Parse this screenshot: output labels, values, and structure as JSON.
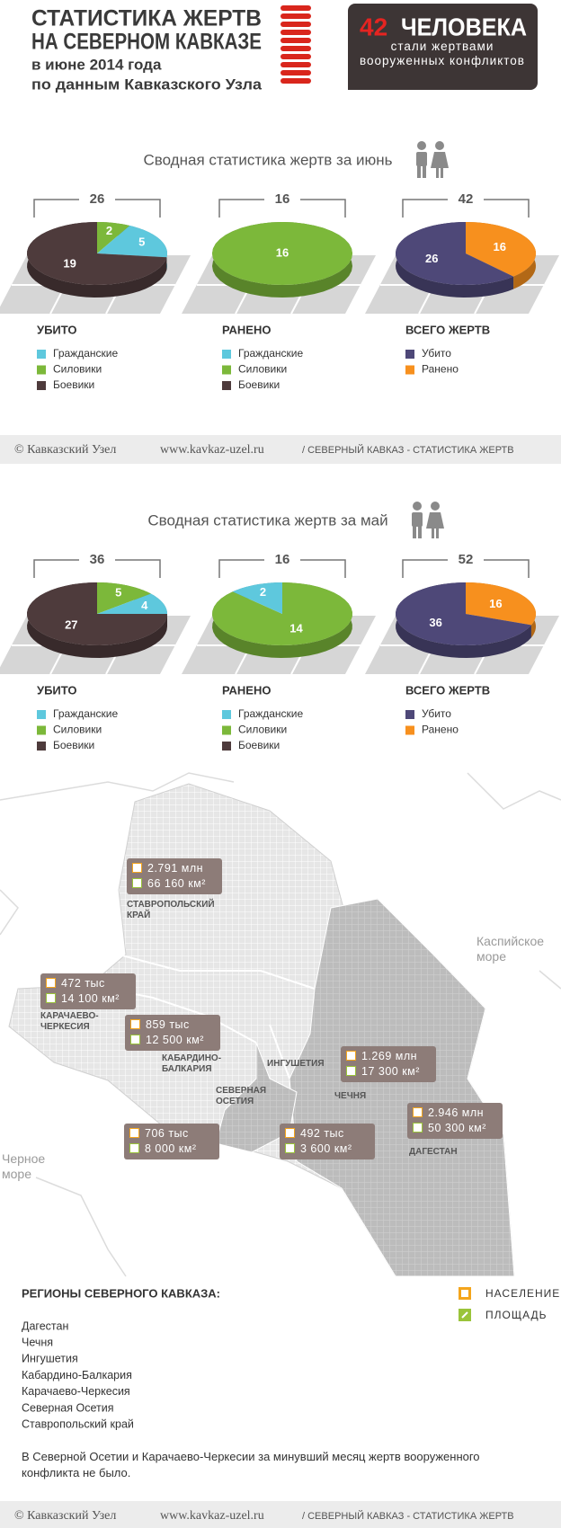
{
  "header": {
    "title_line1": "СТАТИСТИКА ЖЕРТВ",
    "title_line2": "НА СЕВЕРНОМ КАВКАЗЕ",
    "subtitle_line1": "в июне 2014 года",
    "subtitle_line2": "по данным Кавказского Узла",
    "badge_number": 42,
    "badge_word": "ЧЕЛОВЕКА",
    "badge_text": "стали жертвами вооруженных конфликтов"
  },
  "sections": [
    {
      "title": "Сводная статистика жертв за июнь"
    },
    {
      "title": "Сводная статистика жертв за май"
    }
  ],
  "chart_data": [
    {
      "type": "pie",
      "title": "УБИТО",
      "total": 26,
      "categories": [
        "Гражданские",
        "Силовики",
        "Боевики"
      ],
      "values": [
        5,
        2,
        19
      ],
      "colors": [
        "#5ec8dd",
        "#7cb83a",
        "#4e3b3c"
      ]
    },
    {
      "type": "pie",
      "title": "РАНЕНО",
      "total": 16,
      "categories": [
        "Гражданские",
        "Силовики",
        "Боевики"
      ],
      "values": [
        0,
        16,
        0
      ],
      "colors": [
        "#5ec8dd",
        "#7cb83a",
        "#4e3b3c"
      ]
    },
    {
      "type": "pie",
      "title": "ВСЕГО ЖЕРТВ",
      "total": 42,
      "categories": [
        "Убито",
        "Ранено"
      ],
      "values": [
        26,
        16
      ],
      "colors": [
        "#4e4878",
        "#f7901e"
      ]
    },
    {
      "type": "pie",
      "title": "УБИТО",
      "total": 36,
      "categories": [
        "Гражданские",
        "Силовики",
        "Боевики"
      ],
      "values": [
        4,
        5,
        27
      ],
      "colors": [
        "#5ec8dd",
        "#7cb83a",
        "#4e3b3c"
      ]
    },
    {
      "type": "pie",
      "title": "РАНЕНО",
      "total": 16,
      "categories": [
        "Гражданские",
        "Силовики",
        "Боевики"
      ],
      "values": [
        2,
        14,
        0
      ],
      "colors": [
        "#5ec8dd",
        "#7cb83a",
        "#4e3b3c"
      ]
    },
    {
      "type": "pie",
      "title": "ВСЕГО ЖЕРТВ",
      "total": 52,
      "categories": [
        "Убито",
        "Ранено"
      ],
      "values": [
        36,
        16
      ],
      "colors": [
        "#4e4878",
        "#f7901e"
      ]
    }
  ],
  "footer": {
    "copyright": "© Кавказский Узел",
    "url": "www.kavkaz-uzel.ru",
    "section": "/ СЕВЕРНЫЙ КАВКАЗ - СТАТИСТИКА ЖЕРТВ"
  },
  "map": {
    "regions": [
      {
        "name": "СТАВРОПОЛЬСКИЙ КРАЙ",
        "population": "2.791 млн",
        "area": "66 160 км²"
      },
      {
        "name": "КАРАЧАЕВО-ЧЕРКЕСИЯ",
        "population": "472 тыс",
        "area": "14 100 км²"
      },
      {
        "name": "КАБАРДИНО-БАЛКАРИЯ",
        "population": "859 тыс",
        "area": "12 500 км²"
      },
      {
        "name": "СЕВЕРНАЯ ОСЕТИЯ",
        "population": "706 тыс",
        "area": "8 000 км²"
      },
      {
        "name": "ИНГУШЕТИЯ",
        "population": "492 тыс",
        "area": "3 600 км²"
      },
      {
        "name": "ЧЕЧНЯ",
        "population": "1.269 млн",
        "area": "17 300 км²"
      },
      {
        "name": "ДАГЕСТАН",
        "population": "2.946 млн",
        "area": "50 300 км²"
      }
    ],
    "seas": [
      "Каспийское море",
      "Черное море"
    ],
    "legend": {
      "population": "НАСЕЛЕНИЕ",
      "area": "ПЛОЩАДЬ"
    }
  },
  "regions_list": {
    "title": "РЕГИОНЫ СЕВЕРНОГО КАВКАЗА:",
    "items": [
      "Дагестан",
      "Чечня",
      "Ингушетия",
      "Кабардино-Балкария",
      "Карачаево-Черкесия",
      "Северная Осетия",
      "Ставропольский край"
    ],
    "note": "В Северной Осетии и Карачаево-Черкесии за минувший месяц жертв вооруженного конфликта не было."
  }
}
